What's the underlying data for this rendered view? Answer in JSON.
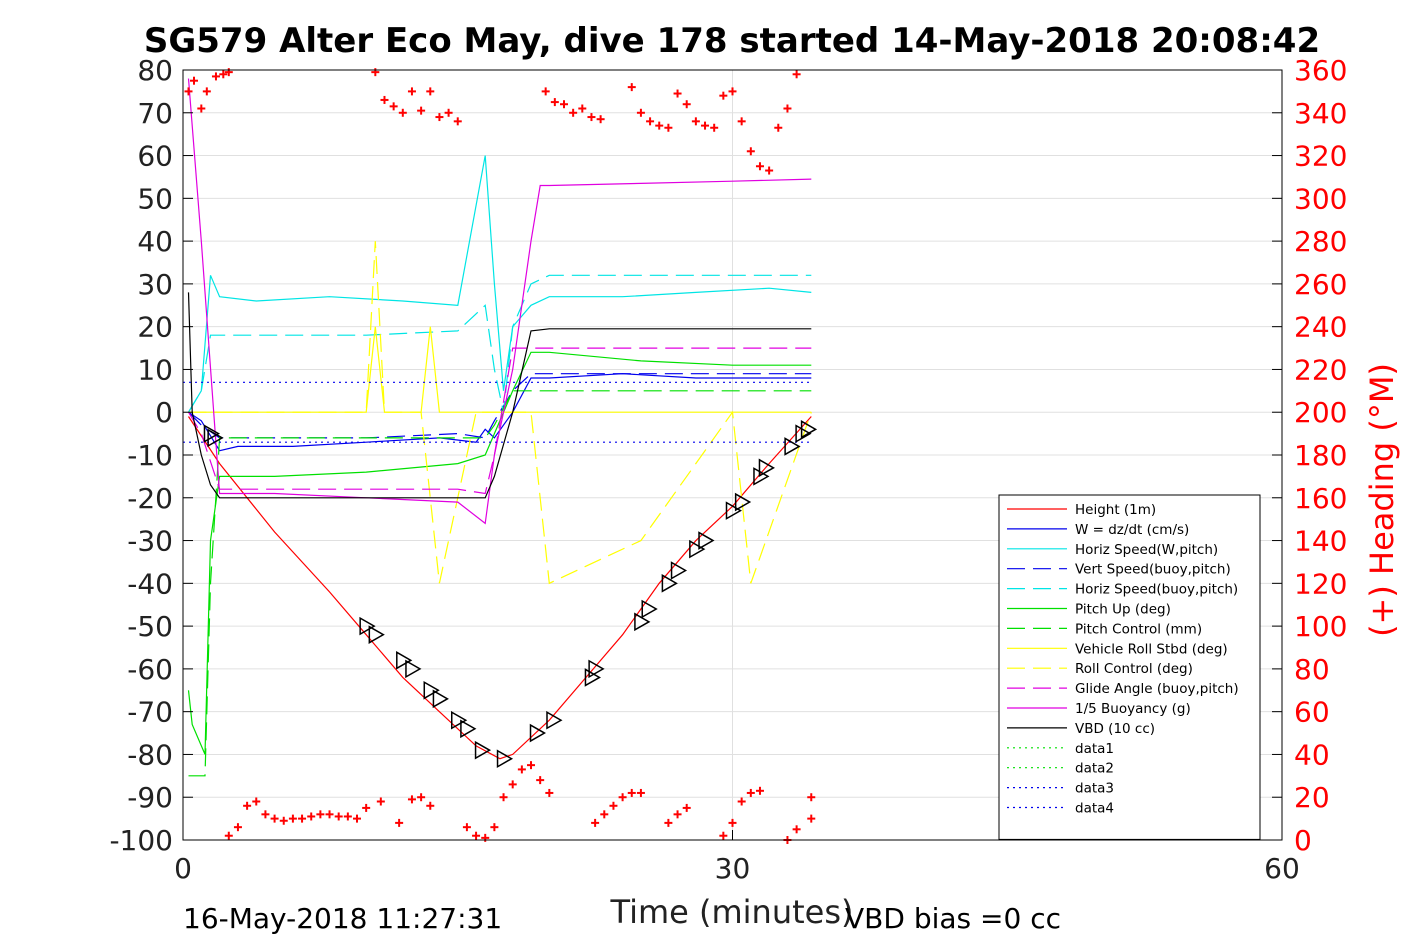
{
  "chart_data": {
    "type": "line",
    "title": "SG579 Alter Eco May, dive 178 started 14-May-2018 20:08:42",
    "xlabel": "Time (minutes)",
    "ylabel": "",
    "y2label": "(+) Heading (°M)",
    "xlim": [
      0,
      60
    ],
    "ylim": [
      -100,
      80
    ],
    "y2lim": [
      0,
      360
    ],
    "xticks": [
      "0",
      "30",
      "60"
    ],
    "yticks": [
      "80",
      "70",
      "60",
      "50",
      "40",
      "30",
      "20",
      "10",
      "0",
      "-10",
      "-20",
      "-30",
      "-40",
      "-50",
      "-60",
      "-70",
      "-80",
      "-90",
      "-100"
    ],
    "y2ticks": [
      "360",
      "340",
      "320",
      "300",
      "280",
      "260",
      "240",
      "220",
      "200",
      "180",
      "160",
      "140",
      "120",
      "100",
      "80",
      "60",
      "40",
      "20",
      "0"
    ],
    "grid": true,
    "legend_position": "lower-right",
    "footer_left": "16-May-2018 11:27:31",
    "footer_right": "VBD bias =0 cc",
    "series": [
      {
        "name": "Height (1m)",
        "color": "#ff0000",
        "style": "solid",
        "x": [
          0.3,
          2,
          5,
          8,
          10,
          12,
          14,
          16,
          17.3,
          18,
          20,
          22,
          24,
          26,
          28,
          30,
          32,
          34.3
        ],
        "y": [
          -1,
          -12,
          -28,
          -42,
          -52,
          -62,
          -70,
          -78,
          -81,
          -80,
          -72,
          -62,
          -52,
          -40,
          -30,
          -22,
          -12,
          -1
        ]
      },
      {
        "name": "W = dz/dt (cm/s)",
        "color": "#0000ee",
        "style": "solid",
        "x": [
          0.3,
          1,
          2,
          3,
          6,
          10,
          14,
          16,
          16.5,
          17,
          18,
          19,
          20,
          24,
          28,
          32,
          34.3
        ],
        "y": [
          0,
          -2,
          -9,
          -8,
          -8,
          -7,
          -6,
          -7,
          -4,
          -6,
          0,
          8,
          8,
          9,
          8,
          8,
          8
        ]
      },
      {
        "name": "Horiz Speed(W,pitch)",
        "color": "#00e5e5",
        "style": "solid",
        "x": [
          0.3,
          1,
          1.5,
          2,
          4,
          8,
          12,
          15,
          16.5,
          17,
          17.5,
          18,
          19,
          20,
          24,
          28,
          32,
          34.3
        ],
        "y": [
          0,
          5,
          32,
          27,
          26,
          27,
          26,
          25,
          60,
          30,
          5,
          20,
          25,
          27,
          27,
          28,
          29,
          28
        ]
      },
      {
        "name": "Vert Speed(buoy,pitch)",
        "color": "#0000ee",
        "style": "dashed",
        "x": [
          0.3,
          1,
          2,
          5,
          10,
          15,
          16.5,
          17,
          18,
          19,
          20,
          25,
          30,
          34.3
        ],
        "y": [
          0,
          -3,
          -6,
          -6,
          -6,
          -5,
          -6,
          -2,
          5,
          9,
          9,
          9,
          9,
          9
        ]
      },
      {
        "name": "Horiz Speed(buoy,pitch)",
        "color": "#00e5e5",
        "style": "dashed",
        "x": [
          0.3,
          1,
          1.5,
          2,
          5,
          10,
          15,
          16.5,
          17,
          17.5,
          18,
          19,
          20,
          25,
          30,
          34.3
        ],
        "y": [
          0,
          5,
          18,
          18,
          18,
          18,
          19,
          25,
          10,
          0,
          20,
          30,
          32,
          32,
          32,
          32
        ]
      },
      {
        "name": "Pitch Up (deg)",
        "color": "#00e000",
        "style": "solid",
        "x": [
          0.3,
          0.5,
          1.2,
          1.5,
          2,
          5,
          10,
          15,
          16.5,
          17,
          18,
          19,
          20,
          25,
          30,
          34.3
        ],
        "y": [
          -65,
          -73,
          -80,
          -30,
          -15,
          -15,
          -14,
          -12,
          -10,
          -5,
          5,
          14,
          14,
          12,
          11,
          11
        ]
      },
      {
        "name": "Pitch Control (mm)",
        "color": "#00e000",
        "style": "dashed",
        "x": [
          0.3,
          0.5,
          1.2,
          1.5,
          2,
          5,
          10,
          15,
          16.5,
          17,
          18,
          19,
          20,
          25,
          30,
          34.3
        ],
        "y": [
          -85,
          -85,
          -85,
          -40,
          -6,
          -6,
          -6,
          -6,
          -6,
          -3,
          5,
          5,
          5,
          5,
          5,
          5
        ]
      },
      {
        "name": "Vehicle Roll Stbd (deg)",
        "color": "#ffff00",
        "style": "solid",
        "x": [
          0.3,
          2,
          10,
          10.5,
          11,
          13,
          13.5,
          14,
          20,
          25,
          30,
          34.3
        ],
        "y": [
          0,
          0,
          0,
          20,
          0,
          0,
          20,
          0,
          0,
          0,
          0,
          0
        ]
      },
      {
        "name": "Roll Control (deg)",
        "color": "#ffff00",
        "style": "dashed",
        "x": [
          0.3,
          2,
          10,
          10.5,
          11,
          13,
          14,
          16,
          19,
          20,
          25,
          30,
          31,
          34.3
        ],
        "y": [
          0,
          0,
          0,
          40,
          0,
          0,
          -40,
          0,
          0,
          -40,
          -30,
          0,
          -40,
          0
        ]
      },
      {
        "name": "Glide Angle (buoy,pitch)",
        "color": "#e000e0",
        "style": "dashed",
        "x": [
          0.3,
          1,
          2,
          5,
          10,
          15,
          16.5,
          17,
          18,
          19,
          20,
          25,
          30,
          34.3
        ],
        "y": [
          0,
          -5,
          -18,
          -18,
          -18,
          -18,
          -19,
          -10,
          15,
          15,
          15,
          15,
          15,
          15
        ]
      },
      {
        "name": "1/5 Buoyancy (g)",
        "color": "#e000e0",
        "style": "solid",
        "x": [
          0.3,
          1,
          2,
          5,
          10,
          15,
          16.5,
          17,
          18,
          19,
          19.5,
          20,
          25,
          30,
          34.3
        ],
        "y": [
          78,
          40,
          -19,
          -19,
          -20,
          -21,
          -26,
          -10,
          10,
          40,
          53,
          53,
          53.5,
          54,
          54.5
        ]
      },
      {
        "name": "VBD (10 cc)",
        "color": "#000000",
        "style": "solid",
        "x": [
          0.3,
          0.5,
          1,
          1.5,
          2,
          5,
          10,
          15,
          16.5,
          17,
          18,
          19,
          20,
          25,
          30,
          34.3
        ],
        "y": [
          28,
          0,
          -10,
          -17,
          -20,
          -20,
          -20,
          -20,
          -20,
          -15,
          0,
          19,
          19.5,
          19.5,
          19.5,
          19.5
        ]
      },
      {
        "name": "data1",
        "color": "#00e000",
        "style": "dotted",
        "x": [],
        "y": []
      },
      {
        "name": "data2",
        "color": "#00e000",
        "style": "dotted",
        "x": [],
        "y": []
      },
      {
        "name": "data3",
        "color": "#0000ee",
        "style": "dotted",
        "x": [
          0,
          34.3
        ],
        "y": [
          7,
          7
        ]
      },
      {
        "name": "data4",
        "color": "#0000ee",
        "style": "dotted",
        "x": [
          0,
          34.3
        ],
        "y": [
          -7,
          -7
        ]
      }
    ],
    "heading": {
      "name": "Heading",
      "color": "#ff0000",
      "marker": "+",
      "x": [
        0.3,
        0.6,
        1,
        1.3,
        1.8,
        2.2,
        2.5,
        10.5,
        11,
        11.5,
        12,
        12.5,
        13,
        13.5,
        14,
        14.5,
        15,
        19.8,
        20.3,
        20.8,
        21.3,
        21.8,
        22.3,
        22.8,
        24.5,
        25,
        25.5,
        26,
        26.5,
        27,
        27.5,
        28,
        28.5,
        29,
        29.5,
        30,
        30.5,
        31,
        31.5,
        32,
        32.5,
        33,
        33.5,
        34.3,
        2.5,
        3,
        3.5,
        4,
        4.5,
        5,
        5.5,
        6,
        6.5,
        7,
        7.5,
        8,
        8.5,
        9,
        9.5,
        10,
        10.8,
        11.8,
        12.5,
        13,
        13.5,
        15.5,
        16,
        16.5,
        17,
        17.5,
        18,
        18.5,
        19,
        19.5,
        20,
        22.5,
        23,
        23.5,
        24,
        24.5,
        25,
        26.5,
        27,
        27.5,
        29.5,
        30,
        30.5,
        31,
        31.5,
        33,
        33.5,
        34.3
      ],
      "y": [
        350,
        355,
        342,
        350,
        357,
        358,
        359,
        359,
        346,
        343,
        340,
        350,
        341,
        350,
        338,
        340,
        336,
        350,
        345,
        344,
        340,
        342,
        338,
        337,
        352,
        340,
        336,
        334,
        333,
        349,
        344,
        336,
        334,
        333,
        348,
        350,
        336,
        322,
        315,
        313,
        333,
        342,
        358,
        20,
        2,
        6,
        16,
        18,
        12,
        10,
        9,
        10,
        10,
        11,
        12,
        12,
        11,
        11,
        10,
        15,
        18,
        8,
        19,
        20,
        16,
        6,
        2,
        1,
        6,
        20,
        26,
        33,
        35,
        28,
        22,
        8,
        12,
        16,
        20,
        22,
        22,
        8,
        12,
        15,
        2,
        8,
        18,
        22,
        23,
        0,
        5,
        10
      ]
    },
    "triangles": {
      "name": "markers",
      "color": "#000000",
      "x": [
        1.5,
        1.7,
        10,
        10.5,
        12,
        12.5,
        13.5,
        14,
        15,
        15.5,
        16.3,
        17.5,
        19.3,
        20.2,
        22.3,
        22.5,
        25,
        25.4,
        26.5,
        27,
        28,
        28.5,
        30,
        30.5,
        31.5,
        31.8,
        33.2,
        33.8,
        34.1
      ],
      "y": [
        -5,
        -6,
        -50,
        -52,
        -58,
        -60,
        -65,
        -67,
        -72,
        -74,
        -79,
        -81,
        -75,
        -72,
        -62,
        -60,
        -49,
        -46,
        -40,
        -37,
        -32,
        -30,
        -23,
        -21,
        -15,
        -13,
        -8,
        -5,
        -4
      ]
    }
  }
}
